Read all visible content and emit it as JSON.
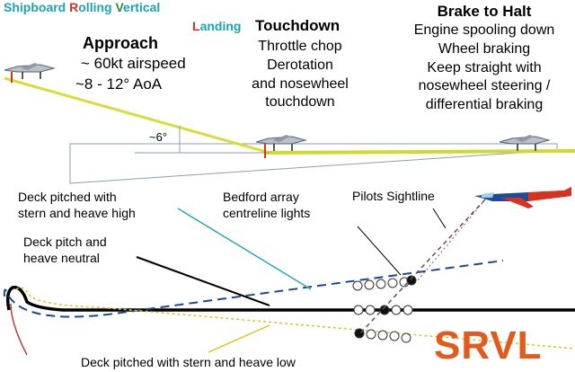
{
  "title": {
    "letters": [
      "S",
      "R",
      "V",
      "L"
    ],
    "words": [
      "hipboard ",
      "olling ",
      "ertical",
      "anding"
    ]
  },
  "approach": {
    "heading": "Approach",
    "line1": "~ 60kt airspeed",
    "line2": "~8 - 12° AoA",
    "angle": "~6°"
  },
  "touchdown": {
    "heading": "Touchdown",
    "lines": [
      "Throttle chop",
      "Derotation",
      "and nosewheel",
      "touchdown"
    ]
  },
  "brake": {
    "heading": "Brake to Halt",
    "lines": [
      "Engine spooling down",
      "Wheel braking",
      "Keep straight with",
      "nosewheel steering /",
      "differential braking"
    ]
  },
  "deck": {
    "stern_high": [
      "Deck pitched with",
      "stern and heave high"
    ],
    "neutral": [
      "Deck pitch and",
      "heave neutral"
    ],
    "stern_low": "Deck pitched with stern and heave low"
  },
  "bedford": [
    "Bedford array",
    "centreline lights"
  ],
  "sightline": "Pilots Sightline",
  "logo": "SRVL",
  "icons": [
    "jet-aircraft-icon",
    "jet-aircraft-icon",
    "jet-aircraft-icon",
    "jet-aircraft-icon"
  ],
  "colors": {
    "title_s": "#1aa3b4",
    "title_r": "#d8321f",
    "title_v": "#2e8c3a",
    "title_l": "#d8321f",
    "title_text": "#1aa3b4",
    "glide_path": "#d9dc3a",
    "leader_teal": "#2aa7b7",
    "leader_yellow": "#e2c21c",
    "deck_dashed": "#1b4a8f",
    "deck_solid": "#000000",
    "sightline": "#c73a3a",
    "logo": "#e35a1c"
  }
}
